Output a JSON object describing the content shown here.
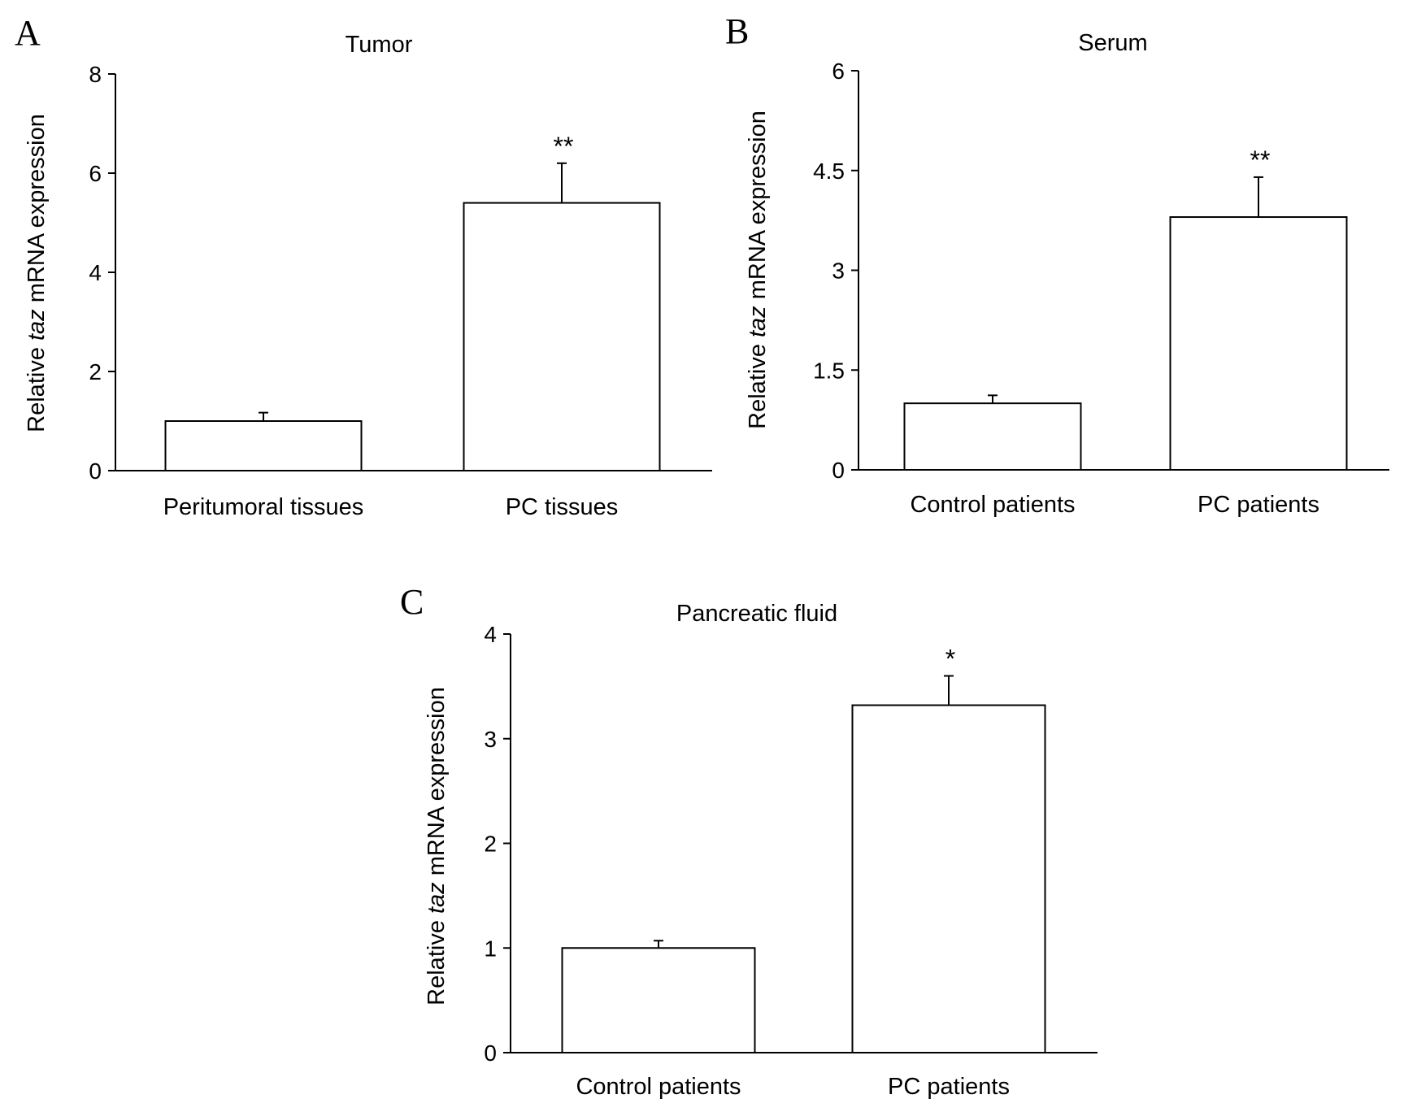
{
  "chart_data": [
    {
      "panel_label": "A",
      "type": "bar",
      "title": "Tumor",
      "ylabel_parts": [
        "Relative ",
        "taz",
        " mRNA expression"
      ],
      "categories": [
        "Peritumoral tissues",
        "PC tissues"
      ],
      "values": [
        1.0,
        5.4
      ],
      "errors": [
        0.17,
        0.8
      ],
      "annotations": [
        "",
        "**"
      ],
      "ylim": [
        0,
        8
      ],
      "yticks": [
        0,
        2,
        4,
        6,
        8
      ],
      "ytick_labels": [
        "0",
        "2",
        "4",
        "6",
        "8"
      ],
      "grid": false,
      "colors": {
        "bar_fill": "#ffffff",
        "bar_stroke": "#000000"
      }
    },
    {
      "panel_label": "B",
      "type": "bar",
      "title": "Serum",
      "ylabel_parts": [
        "Relative ",
        "taz",
        " mRNA expression"
      ],
      "categories": [
        "Control patients",
        "PC patients"
      ],
      "values": [
        1.0,
        3.8
      ],
      "errors": [
        0.12,
        0.6
      ],
      "annotations": [
        "",
        "**"
      ],
      "ylim": [
        0,
        6
      ],
      "yticks": [
        0,
        1.5,
        3,
        4.5,
        6
      ],
      "ytick_labels": [
        "0",
        "1.5",
        "3",
        "4.5",
        "6"
      ],
      "grid": false,
      "colors": {
        "bar_fill": "#ffffff",
        "bar_stroke": "#000000"
      }
    },
    {
      "panel_label": "C",
      "type": "bar",
      "title": "Pancreatic fluid",
      "ylabel_parts": [
        "Relative ",
        "taz",
        " mRNA expression"
      ],
      "categories": [
        "Control patients",
        "PC patients"
      ],
      "values": [
        1.0,
        3.32
      ],
      "errors": [
        0.07,
        0.28
      ],
      "annotations": [
        "",
        "*"
      ],
      "ylim": [
        0,
        4
      ],
      "yticks": [
        0,
        1,
        2,
        3,
        4
      ],
      "ytick_labels": [
        "0",
        "1",
        "2",
        "3",
        "4"
      ],
      "grid": false,
      "colors": {
        "bar_fill": "#ffffff",
        "bar_stroke": "#000000"
      }
    }
  ]
}
